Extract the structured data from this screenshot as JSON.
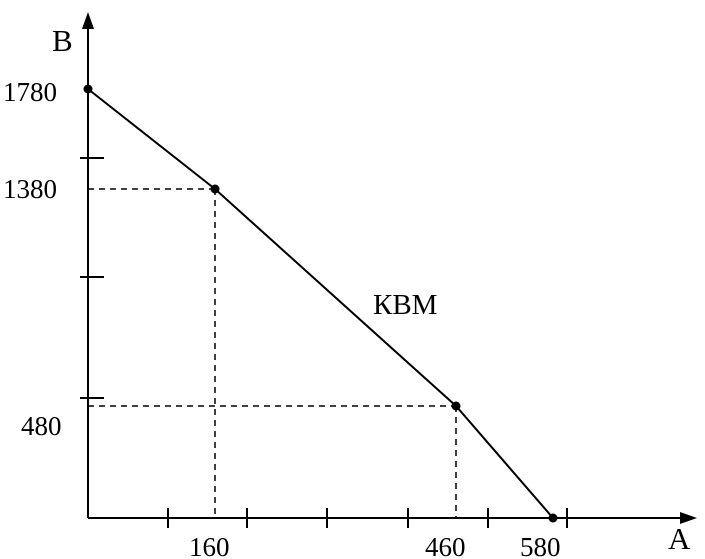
{
  "chart_data": {
    "type": "line",
    "xlabel": "A",
    "ylabel": "B",
    "xlim": [
      0,
      700
    ],
    "ylim": [
      0,
      1780
    ],
    "grid": false,
    "series": [
      {
        "name": "КВМ",
        "x": [
          0,
          160,
          460,
          580
        ],
        "y": [
          1780,
          1380,
          480,
          0
        ]
      }
    ],
    "x_tick_labels": [
      "160",
      "460",
      "580"
    ],
    "y_tick_labels": [
      "1780",
      "1380",
      "480"
    ],
    "guide_points": [
      {
        "x": 160,
        "y": 1380
      },
      {
        "x": 460,
        "y": 480
      }
    ]
  }
}
